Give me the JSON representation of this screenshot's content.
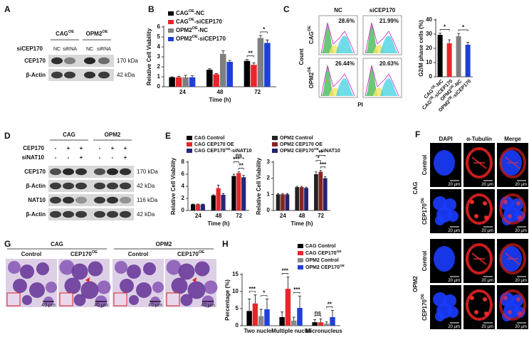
{
  "panel_labels": [
    "A",
    "B",
    "C",
    "D",
    "E",
    "F",
    "G",
    "H"
  ],
  "blot_a": {
    "groups": [
      "CAGOE",
      "OPM2OE"
    ],
    "row_header": "siCEP170",
    "lanes": [
      "NC",
      "siRNA",
      "NC",
      "siRNA"
    ],
    "bands": [
      {
        "name": "CEP170",
        "size": "170 kDa"
      },
      {
        "name": "β-Actin",
        "size": "42 kDa"
      }
    ]
  },
  "flow_c": {
    "columns": [
      "NC",
      "siCEP170"
    ],
    "rows": [
      "CAGOE",
      "OPM2OE"
    ],
    "percentages": [
      [
        "28.6%",
        "21.99%"
      ],
      [
        "26.44%",
        "20.63%"
      ]
    ],
    "ylabel": "Count",
    "xlabel": "PI"
  },
  "blot_d": {
    "groups": [
      "CAG",
      "OPM2"
    ],
    "conditions": [
      {
        "name": "CEP170",
        "states": [
          "-",
          "+",
          "+",
          "-",
          "+",
          "+"
        ]
      },
      {
        "name": "siNAT10",
        "states": [
          "-",
          "-",
          "+",
          "-",
          "-",
          "+"
        ]
      }
    ],
    "bands": [
      {
        "name": "CEP170",
        "size": "170 kDa"
      },
      {
        "name": "β-Actin",
        "size": "42 kDa"
      },
      {
        "name": "NAT10",
        "size": "116 kDa"
      },
      {
        "name": "β-Actin",
        "size": "42 kDa"
      }
    ]
  },
  "micro_f": {
    "columns": [
      "DAPI",
      "α-Tubulin",
      "Merge"
    ],
    "groups": [
      "CAG",
      "OPM2"
    ],
    "rows": [
      "Control",
      "CEP170OE",
      "Control",
      "CEP170OE"
    ],
    "scale_bar": "20 μm"
  },
  "micro_g": {
    "groups": [
      "CAG",
      "OPM2"
    ],
    "columns": [
      "Control",
      "CEP170OE",
      "Control",
      "CEP170OE"
    ],
    "scale_bar": "40 μm"
  },
  "chart_data": [
    {
      "type": "bar",
      "categories": [
        "24",
        "48",
        "72"
      ],
      "xlabel": "Time (h)",
      "ylabel": "Relative Cell Viability",
      "ylim": [
        0,
        6
      ],
      "yticks": [
        0,
        1,
        2,
        3,
        4,
        5,
        6
      ],
      "series": [
        {
          "name": "CAGOE-NC",
          "color": "#000000",
          "values": [
            0.95,
            1.7,
            2.6
          ],
          "errors": [
            0.05,
            0.1,
            0.15
          ]
        },
        {
          "name": "CAGOE-siCEP170",
          "color": "#e8262a",
          "values": [
            0.95,
            1.25,
            2.2
          ],
          "errors": [
            0.1,
            0.08,
            0.2
          ]
        },
        {
          "name": "OPM2OE-NC",
          "color": "#7f7f7f",
          "values": [
            0.95,
            3.3,
            4.9
          ],
          "errors": [
            0.2,
            0.3,
            0.25
          ]
        },
        {
          "name": "OPM2OE-siCEP170",
          "color": "#1f3fd6",
          "values": [
            0.95,
            2.5,
            4.4
          ],
          "errors": [
            0.15,
            0.15,
            0.3
          ]
        }
      ],
      "annotations": [
        "**",
        "*"
      ]
    },
    {
      "type": "bar",
      "categories": [
        "CAGOE-NC",
        "CAGOE-siCEP170",
        "OPM2OE-NC",
        "OPM2OE-siCEP170"
      ],
      "ylabel": "G2/M phase cells (%)",
      "ylim": [
        0,
        40
      ],
      "yticks": [
        0,
        10,
        20,
        30,
        40
      ],
      "values": [
        29.5,
        23.5,
        28.5,
        22.5
      ],
      "errors": [
        1.2,
        2.5,
        2,
        1.8
      ],
      "colors": [
        "#000000",
        "#e8262a",
        "#7f7f7f",
        "#1f3fd6"
      ],
      "annotations": [
        "*",
        "*"
      ]
    },
    {
      "type": "bar",
      "categories": [
        "24",
        "48",
        "72"
      ],
      "xlabel": "Time (h)",
      "ylabel": "Relative Cell Viability",
      "ylim": [
        0,
        8
      ],
      "yticks": [
        0,
        2,
        4,
        6,
        8
      ],
      "series": [
        {
          "name": "CAG Control",
          "color": "#000000",
          "values": [
            1.0,
            2.5,
            5.7
          ],
          "errors": [
            0.05,
            0.1,
            0.3
          ]
        },
        {
          "name": "CAG CEP170 OE",
          "color": "#e8262a",
          "values": [
            1.0,
            3.7,
            6.2
          ],
          "errors": [
            0.05,
            0.5,
            0.2
          ]
        },
        {
          "name": "CAG CEP170OE-siNAT10",
          "color": "#23287a",
          "values": [
            1.0,
            2.6,
            5.5
          ],
          "errors": [
            0.05,
            0.2,
            0.3
          ]
        }
      ],
      "annotations": [
        "ns",
        "***",
        "**"
      ]
    },
    {
      "type": "bar",
      "categories": [
        "24",
        "48",
        "72"
      ],
      "xlabel": "Time (h)",
      "ylabel": "Relative Cell Viability",
      "ylim": [
        0,
        3
      ],
      "yticks": [
        0,
        1,
        2,
        3
      ],
      "series": [
        {
          "name": "OPM2 Control",
          "color": "#222222",
          "values": [
            1.0,
            1.45,
            2.25
          ],
          "errors": [
            0.05,
            0.05,
            0.15
          ]
        },
        {
          "name": "OPM2 CEP170 OE",
          "color": "#8b2323",
          "values": [
            1.0,
            1.45,
            2.4
          ],
          "errors": [
            0.05,
            0.05,
            0.08
          ]
        },
        {
          "name": "OPM2 CEP170OE-siNAT10",
          "color": "#23236e",
          "values": [
            1.0,
            1.4,
            2.0
          ],
          "errors": [
            0.05,
            0.05,
            0.1
          ]
        }
      ],
      "annotations": [
        "**",
        "*",
        "***"
      ]
    },
    {
      "type": "bar",
      "categories": [
        "Two nuclei",
        "Multiple nuclei",
        "Micronucleus"
      ],
      "ylabel": "Percentage (%)",
      "ylim": [
        0,
        15
      ],
      "yticks": [
        0,
        5,
        10,
        15
      ],
      "series": [
        {
          "name": "CAG Control",
          "color": "#000000",
          "values": [
            4.3,
            2.5,
            1.0
          ],
          "errors": [
            3.5,
            1.5,
            0.8
          ]
        },
        {
          "name": "CAG CEP170OE",
          "color": "#e8262a",
          "values": [
            6.5,
            10.8,
            1.0
          ],
          "errors": [
            2.5,
            3.5,
            1.0
          ]
        },
        {
          "name": "OPM2 Control",
          "color": "#888888",
          "values": [
            2.8,
            1.5,
            0.6
          ],
          "errors": [
            2.0,
            1.0,
            0.5
          ]
        },
        {
          "name": "OPM2 CEP170OE",
          "color": "#1f3fd6",
          "values": [
            4.8,
            5.2,
            2.5
          ],
          "errors": [
            3.0,
            3.5,
            2.0
          ]
        }
      ],
      "annotations": [
        "***",
        "*",
        "***",
        "***",
        "ns",
        "**"
      ]
    }
  ]
}
